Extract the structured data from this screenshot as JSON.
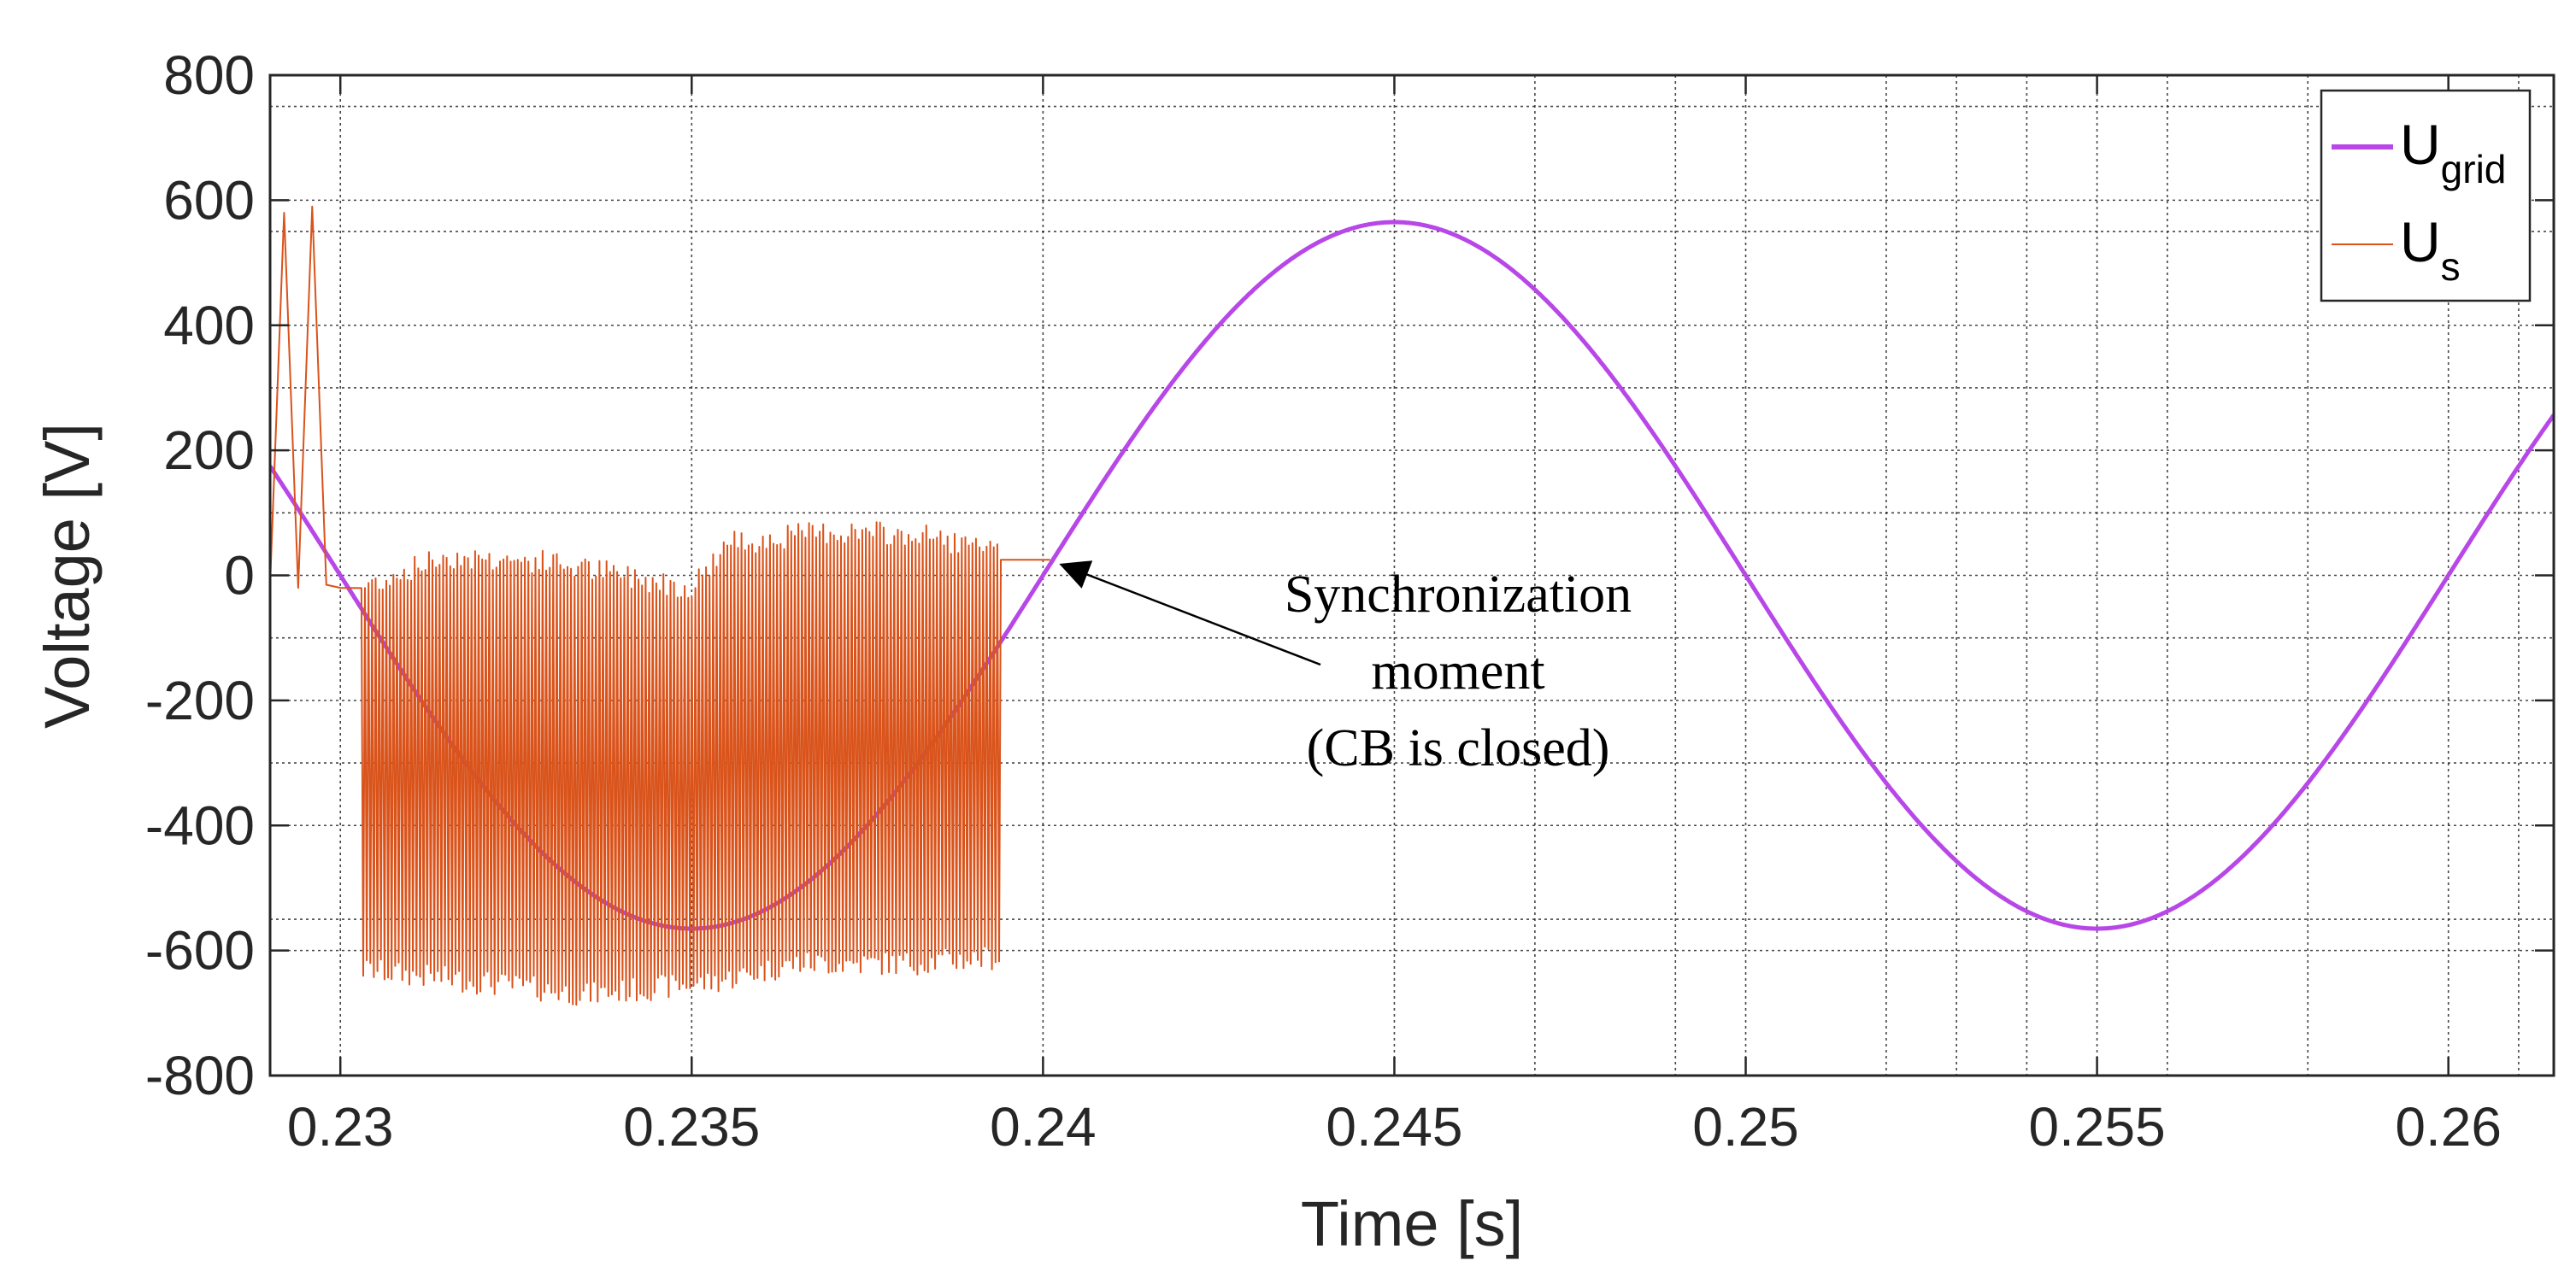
{
  "chart_data": {
    "type": "line",
    "title": "",
    "xlabel": "Time [s]",
    "ylabel": "Voltage [V]",
    "xlim": [
      0.229,
      0.2615
    ],
    "ylim": [
      -800,
      800
    ],
    "grid": true,
    "x_major_grid": [
      0.23,
      0.235,
      0.24,
      0.245,
      0.25,
      0.255,
      0.26
    ],
    "x_minor_grid": [
      0.247,
      0.249,
      0.252,
      0.253,
      0.254,
      0.256,
      0.258,
      0.261
    ],
    "y_major_grid": [
      -800,
      -600,
      -400,
      -200,
      0,
      200,
      400,
      600,
      800
    ],
    "y_minor_grid": [
      -550,
      -300,
      -100,
      100,
      300,
      550,
      750
    ],
    "x_ticks": [
      {
        "value": 0.23,
        "label": "0.23"
      },
      {
        "value": 0.235,
        "label": "0.235"
      },
      {
        "value": 0.24,
        "label": "0.24"
      },
      {
        "value": 0.245,
        "label": "0.245"
      },
      {
        "value": 0.25,
        "label": "0.25"
      },
      {
        "value": 0.255,
        "label": "0.255"
      },
      {
        "value": 0.26,
        "label": "0.26"
      }
    ],
    "y_ticks": [
      {
        "value": 800,
        "label": "800"
      },
      {
        "value": 600,
        "label": "600"
      },
      {
        "value": 400,
        "label": "400"
      },
      {
        "value": 200,
        "label": "200"
      },
      {
        "value": 0,
        "label": "0"
      },
      {
        "value": -200,
        "label": "-200"
      },
      {
        "value": -400,
        "label": "-400"
      },
      {
        "value": -600,
        "label": "-600"
      },
      {
        "value": -800,
        "label": "-800"
      }
    ],
    "series": [
      {
        "name": "U_grid",
        "legend_main": "U",
        "legend_sub": "grid",
        "color": "#b847e8",
        "kind": "sine",
        "amplitude": 565,
        "frequency_hz": 50,
        "peak_time": 0.245,
        "points": [
          [
            0.229,
            165
          ],
          [
            0.2325,
            -400
          ],
          [
            0.235,
            -565
          ],
          [
            0.2375,
            -400
          ],
          [
            0.24,
            0
          ],
          [
            0.2425,
            400
          ],
          [
            0.245,
            565
          ],
          [
            0.2475,
            400
          ],
          [
            0.25,
            0
          ],
          [
            0.2525,
            -400
          ],
          [
            0.255,
            -565
          ],
          [
            0.2575,
            -400
          ],
          [
            0.26,
            0
          ],
          [
            0.2615,
            255
          ]
        ]
      },
      {
        "name": "U_s",
        "legend_main": "U",
        "legend_sub": "s",
        "color": "#d9531b",
        "kind": "switching",
        "points": [
          [
            0.229,
            -15
          ],
          [
            0.2292,
            580
          ],
          [
            0.2294,
            -20
          ],
          [
            0.2296,
            590
          ],
          [
            0.2298,
            -15
          ],
          [
            0.23,
            -20
          ],
          [
            0.2304,
            -630
          ],
          [
            0.2315,
            30
          ],
          [
            0.233,
            -670
          ],
          [
            0.2355,
            60
          ],
          [
            0.236,
            -640
          ],
          [
            0.2385,
            60
          ],
          [
            0.2394,
            -610
          ],
          [
            0.2396,
            30
          ],
          [
            0.24,
            25
          ]
        ],
        "switching_start": 0.2303,
        "switching_end": 0.2394,
        "top_envelope": [
          [
            0.2303,
            -20
          ],
          [
            0.2315,
            30
          ],
          [
            0.233,
            20
          ],
          [
            0.235,
            -20
          ],
          [
            0.2355,
            50
          ],
          [
            0.237,
            70
          ],
          [
            0.2385,
            60
          ],
          [
            0.2394,
            30
          ]
        ],
        "bottom_envelope": [
          [
            0.2303,
            -630
          ],
          [
            0.232,
            -650
          ],
          [
            0.2335,
            -670
          ],
          [
            0.2353,
            -650
          ],
          [
            0.2365,
            -620
          ],
          [
            0.238,
            -620
          ],
          [
            0.2394,
            -610
          ]
        ],
        "tail_after_switching": [
          [
            0.2394,
            25
          ],
          [
            0.2401,
            25
          ]
        ]
      }
    ],
    "annotation": {
      "lines": [
        "Synchronization",
        "moment",
        "(CB is closed)"
      ],
      "arrow_to": [
        0.2401,
        25
      ]
    },
    "legend": {
      "position": "top-right"
    }
  }
}
